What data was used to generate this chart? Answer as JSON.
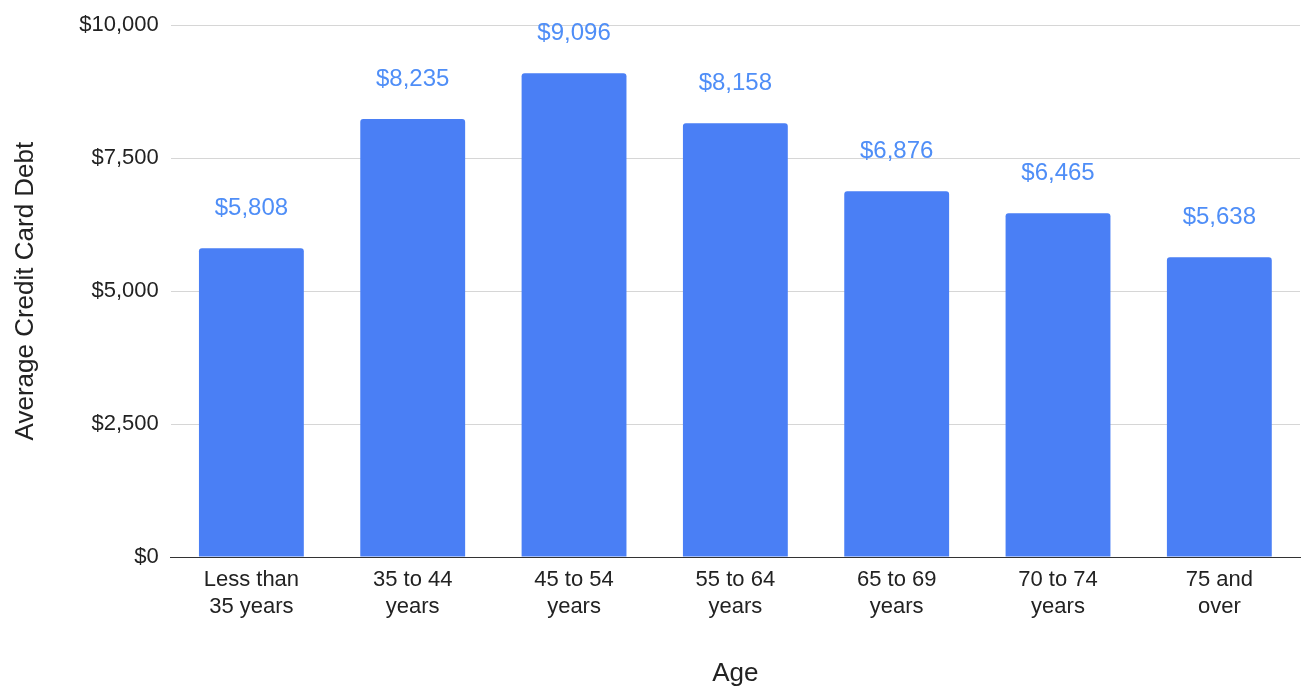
{
  "chart_data": {
    "type": "bar",
    "xlabel": "Age",
    "ylabel": "Average Credit Card Debt",
    "categories": [
      "Less than 35 years",
      "35 to 44 years",
      "45 to 54 years",
      "55 to 64 years",
      "65 to 69 years",
      "70 to 74 years",
      "75 and over"
    ],
    "values": [
      5808,
      8235,
      9096,
      8158,
      6876,
      6465,
      5638
    ],
    "value_labels": [
      "$5,808",
      "$8,235",
      "$9,096",
      "$8,158",
      "$6,876",
      "$6,465",
      "$5,638"
    ],
    "color": "#4a7ff5",
    "ylim": [
      0,
      10000
    ],
    "yticks": [
      {
        "value": 0,
        "label": "$0"
      },
      {
        "value": 2500,
        "label": "$2,500"
      },
      {
        "value": 5000,
        "label": "$5,000"
      },
      {
        "value": 7500,
        "label": "$7,500"
      },
      {
        "value": 10000,
        "label": "$10,000"
      }
    ],
    "grid": "y"
  }
}
